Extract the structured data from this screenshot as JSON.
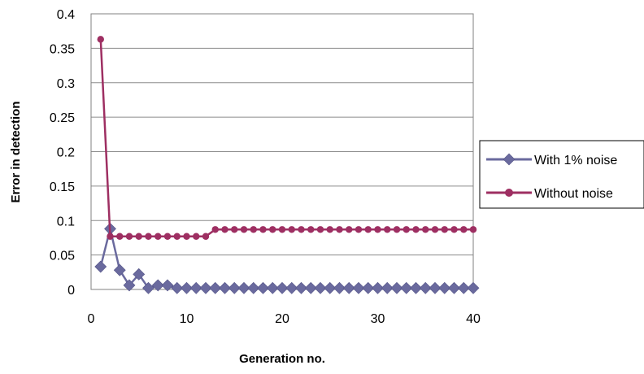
{
  "chart_data": {
    "type": "line",
    "xlabel": "Generation no.",
    "ylabel": "Error in detection",
    "xlim": [
      0,
      40
    ],
    "ylim": [
      0,
      0.4
    ],
    "x_ticks": [
      "0",
      "10",
      "20",
      "30",
      "40"
    ],
    "y_ticks": [
      "0",
      "0.05",
      "0.1",
      "0.15",
      "0.2",
      "0.25",
      "0.3",
      "0.35",
      "0.4"
    ],
    "grid": "horizontal",
    "legend_position": "right",
    "series": [
      {
        "name": "With 1% noise",
        "marker": "diamond",
        "color": "#6A6A9E",
        "x": [
          1,
          2,
          3,
          4,
          5,
          6,
          7,
          8,
          9,
          10,
          11,
          12,
          13,
          14,
          15,
          16,
          17,
          18,
          19,
          20,
          21,
          22,
          23,
          24,
          25,
          26,
          27,
          28,
          29,
          30,
          31,
          32,
          33,
          34,
          35,
          36,
          37,
          38,
          39,
          40
        ],
        "y": [
          0.033,
          0.088,
          0.028,
          0.006,
          0.022,
          0.002,
          0.006,
          0.006,
          0.002,
          0.002,
          0.002,
          0.002,
          0.002,
          0.002,
          0.002,
          0.002,
          0.002,
          0.002,
          0.002,
          0.002,
          0.002,
          0.002,
          0.002,
          0.002,
          0.002,
          0.002,
          0.002,
          0.002,
          0.002,
          0.002,
          0.002,
          0.002,
          0.002,
          0.002,
          0.002,
          0.002,
          0.002,
          0.002,
          0.002,
          0.002
        ]
      },
      {
        "name": "Without noise",
        "marker": "circle",
        "color": "#9E2F62",
        "x": [
          1,
          2,
          3,
          4,
          5,
          6,
          7,
          8,
          9,
          10,
          11,
          12,
          13,
          14,
          15,
          16,
          17,
          18,
          19,
          20,
          21,
          22,
          23,
          24,
          25,
          26,
          27,
          28,
          29,
          30,
          31,
          32,
          33,
          34,
          35,
          36,
          37,
          38,
          39,
          40
        ],
        "y": [
          0.363,
          0.077,
          0.077,
          0.077,
          0.077,
          0.077,
          0.077,
          0.077,
          0.077,
          0.077,
          0.077,
          0.077,
          0.087,
          0.087,
          0.087,
          0.087,
          0.087,
          0.087,
          0.087,
          0.087,
          0.087,
          0.087,
          0.087,
          0.087,
          0.087,
          0.087,
          0.087,
          0.087,
          0.087,
          0.087,
          0.087,
          0.087,
          0.087,
          0.087,
          0.087,
          0.087,
          0.087,
          0.087,
          0.087,
          0.087
        ]
      }
    ]
  }
}
